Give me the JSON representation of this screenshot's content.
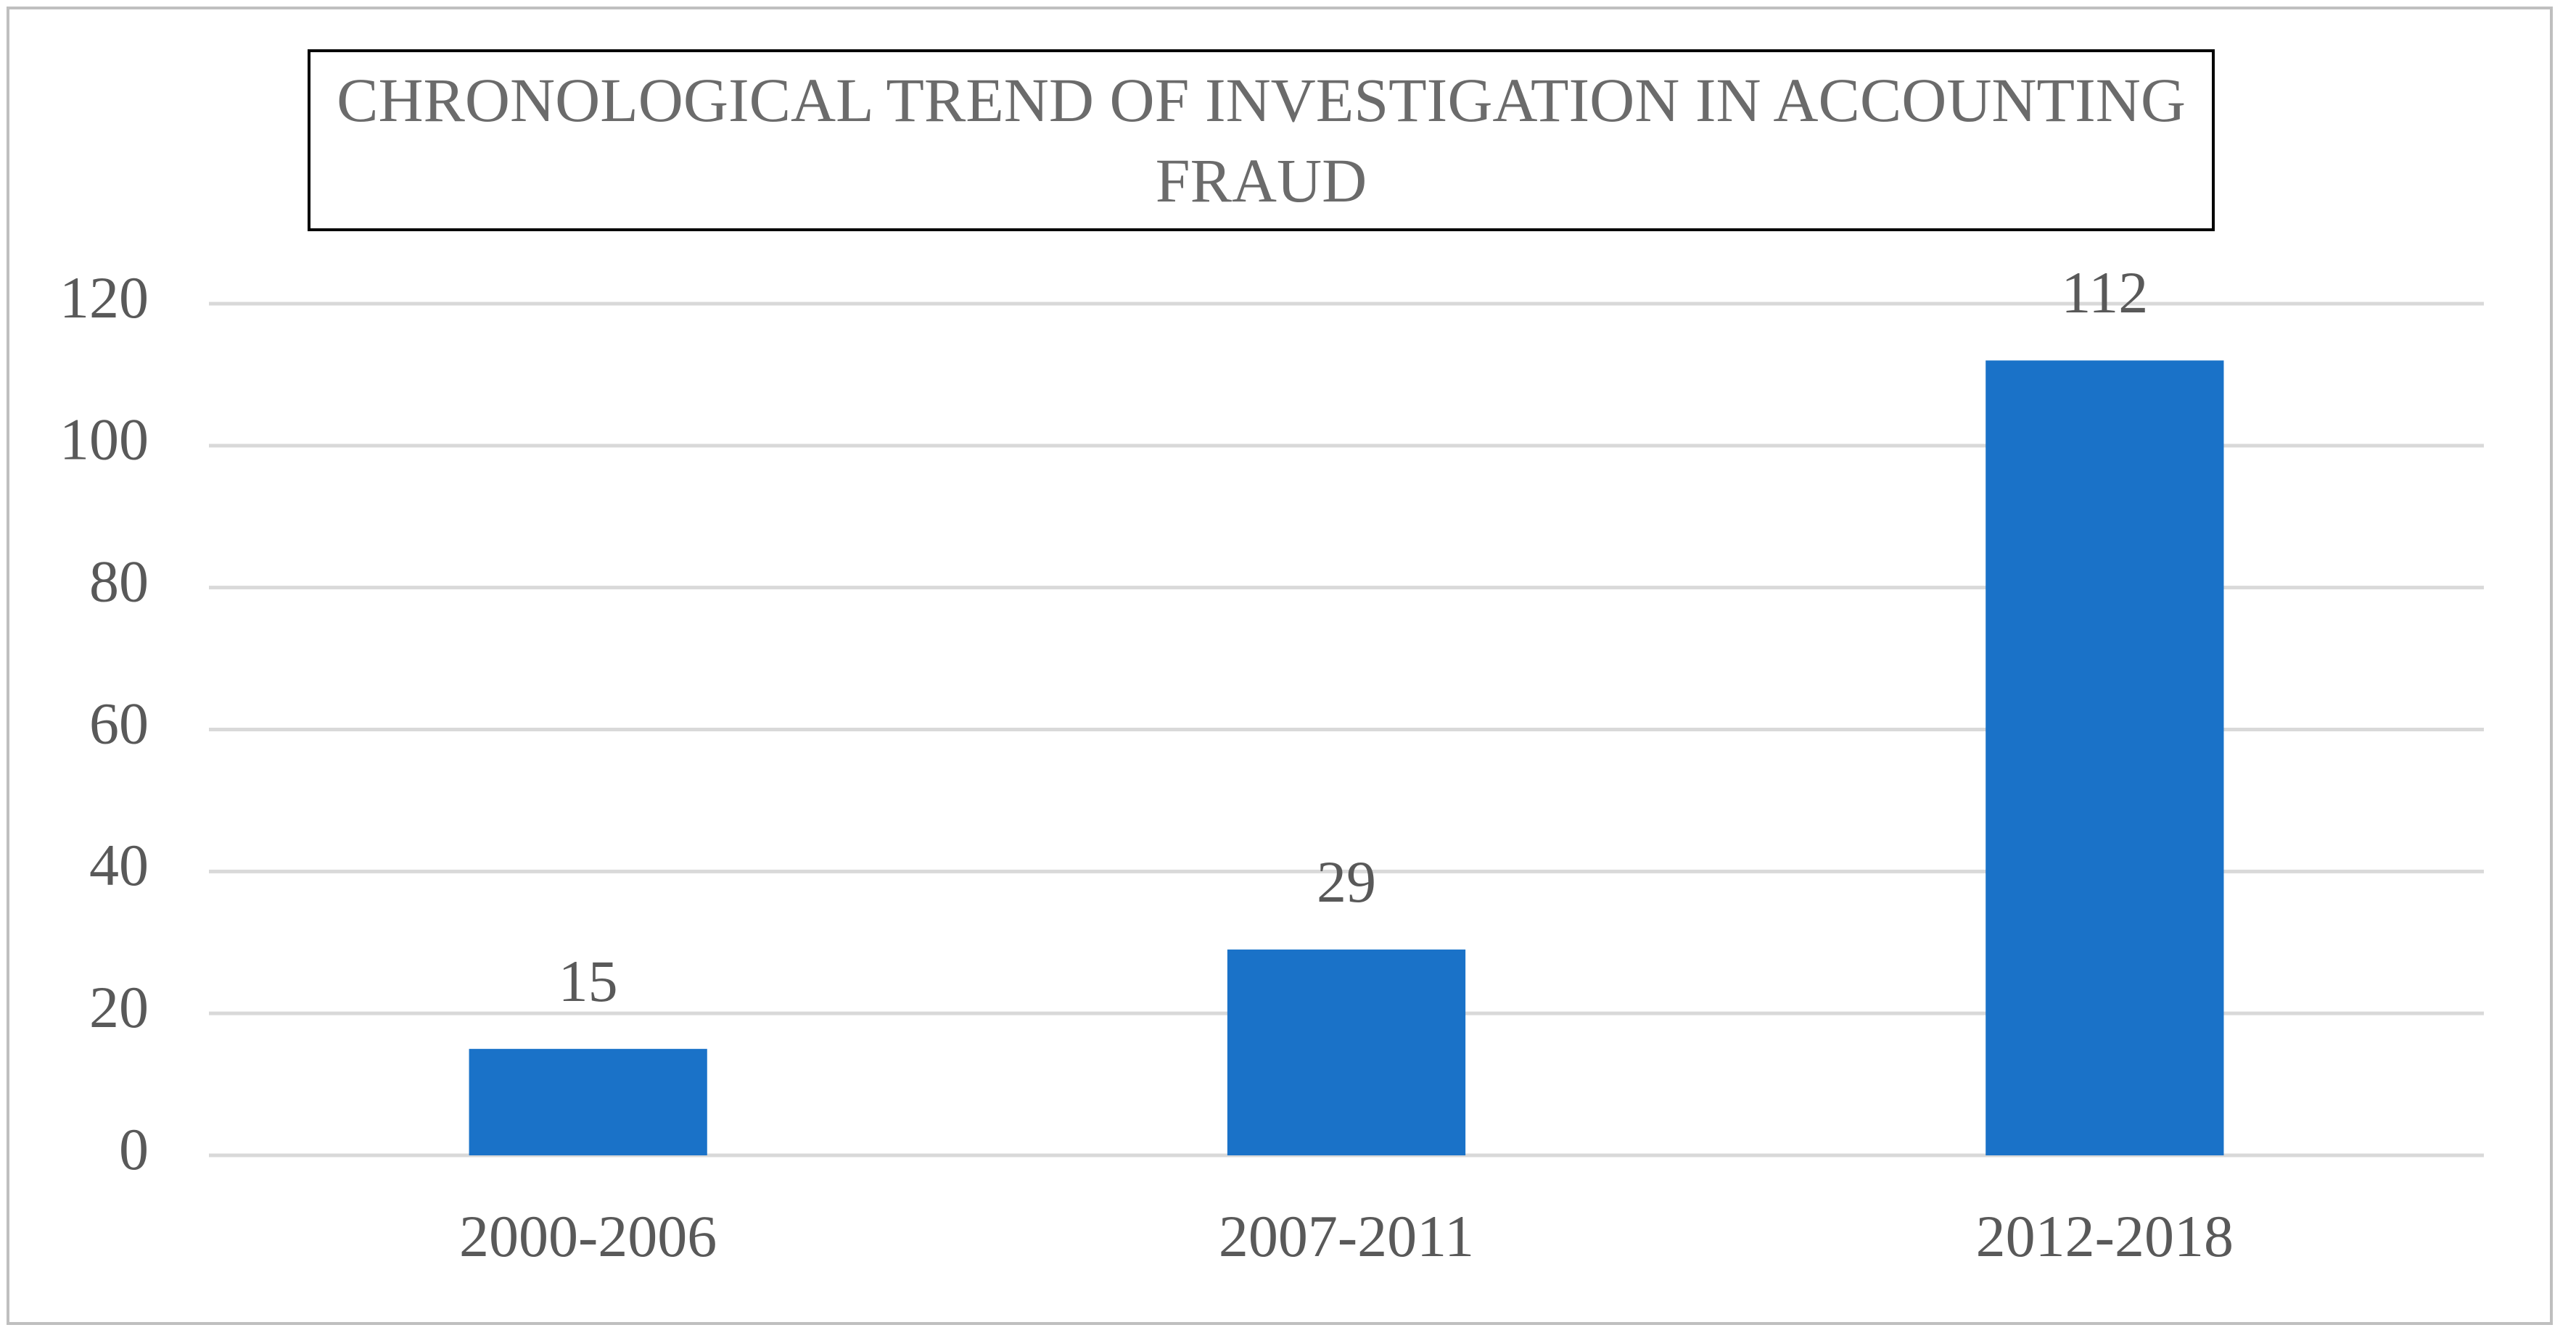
{
  "chart_data": {
    "type": "bar",
    "title": "CHRONOLOGICAL TREND OF INVESTIGATION IN ACCOUNTING FRAUD",
    "categories": [
      "2000-2006",
      "2007-2011",
      "2012-2018"
    ],
    "values": [
      15,
      29,
      112
    ],
    "color": "#1a72c8",
    "ylim": [
      0,
      120
    ],
    "yticks": [
      0,
      20,
      40,
      60,
      80,
      100,
      120
    ],
    "grid": true,
    "data_labels": true
  }
}
